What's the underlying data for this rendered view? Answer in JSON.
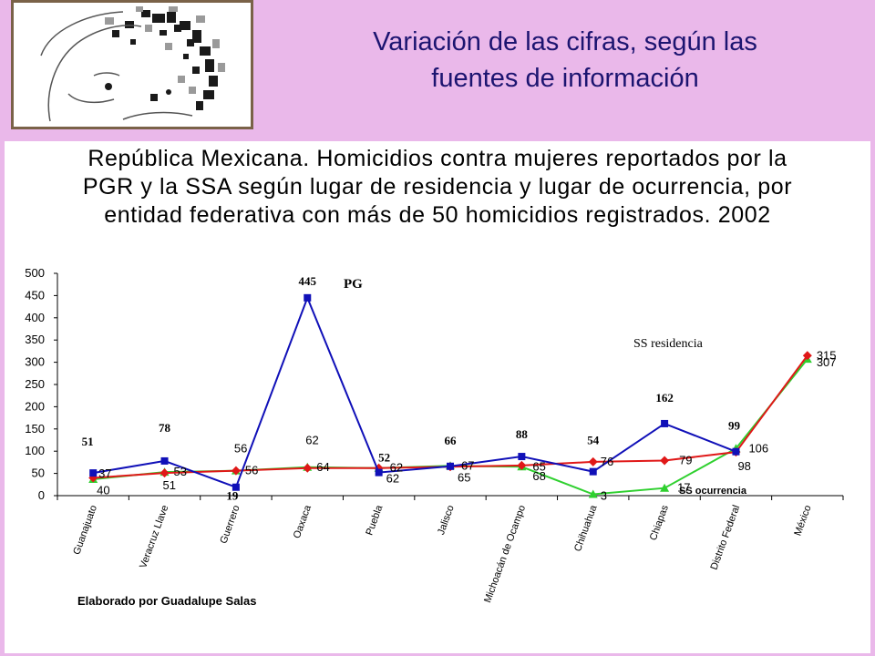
{
  "slide": {
    "title_line1": "Variación de las cifras, según las",
    "title_line2": "fuentes de información"
  },
  "logo": {
    "icon": "sketched-woman-face-icon"
  },
  "chart_data": {
    "type": "line",
    "title_lines": [
      "República Mexicana. Homicidios contra mujeres reportados por la",
      "PGR y la SSA según lugar de residencia y lugar de ocurrencia, por",
      "entidad federativa con más de 50 homicidios registrados. 2002"
    ],
    "categories": [
      "Guanajuato",
      "Veracruz Llave",
      "Guerrero",
      "Oaxaca",
      "Puebla",
      "Jalisco",
      "Michoacán de Ocampo",
      "Chihuahua",
      "Chiapas",
      "Distrito Federal",
      "México"
    ],
    "ylim": [
      0,
      500
    ],
    "yticks": [
      0,
      50,
      100,
      150,
      200,
      250,
      300,
      350,
      400,
      450,
      500
    ],
    "grid": false,
    "series": [
      {
        "name": "PG",
        "color": "#1010b8",
        "marker": "square",
        "values": [
          51,
          78,
          19,
          445,
          52,
          66,
          88,
          54,
          162,
          99,
          null
        ],
        "labels": [
          "51",
          "78",
          "19",
          "445",
          "52",
          "66",
          "88",
          "54",
          "162",
          "99",
          ""
        ]
      },
      {
        "name": "SS residencia",
        "color": "#e01818",
        "marker": "diamond",
        "values": [
          40,
          51,
          56,
          62,
          62,
          65,
          68,
          76,
          79,
          98,
          315
        ],
        "labels": [
          "40",
          "51",
          "56",
          "62",
          "62",
          "65",
          "68",
          "76",
          "79",
          "98",
          "315"
        ]
      },
      {
        "name": "SS ocurrencia",
        "color": "#2fd02f",
        "marker": "triangle",
        "values": [
          37,
          53,
          56,
          64,
          62,
          67,
          65,
          3,
          17,
          106,
          307
        ],
        "labels": [
          "37",
          "53",
          "56",
          "64",
          "62",
          "67",
          "65",
          "3",
          "17",
          "106",
          "307"
        ]
      }
    ]
  },
  "credit": "Elaborado por Guadalupe Salas"
}
